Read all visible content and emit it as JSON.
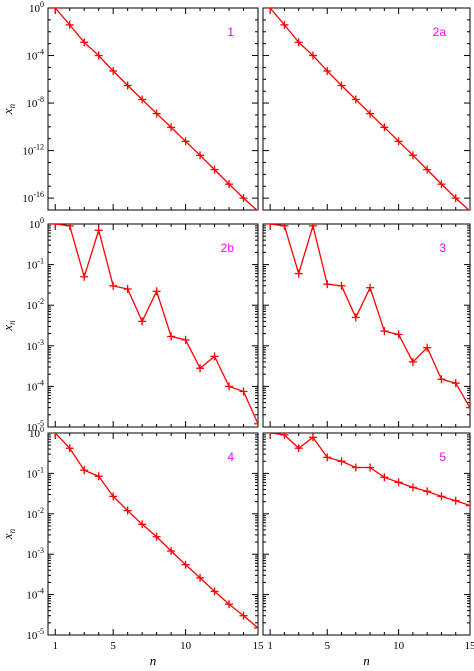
{
  "chart_data": [
    {
      "type": "line",
      "label": "1",
      "xlabel": "",
      "ylabel": "x_n",
      "yscale": "log",
      "ylim": [
        1e-17,
        1
      ],
      "xlim": [
        0,
        15
      ],
      "yticks": [
        "10^0",
        "10^-4",
        "10^-8",
        "10^-12",
        "10^-16"
      ],
      "xticks": [],
      "x": [
        1,
        2,
        3,
        4,
        5,
        6,
        7,
        8,
        9,
        10,
        11,
        12,
        13,
        14,
        15
      ],
      "series": [
        {
          "color": "#ff0000",
          "values": [
            1,
            0.038,
            0.0013,
            0.0001,
            5e-06,
            3e-07,
            2e-08,
            1.3e-09,
            9e-11,
            6e-12,
            4e-13,
            2.5e-14,
            1.5e-15,
            1e-16,
            8e-18
          ]
        }
      ]
    },
    {
      "type": "line",
      "label": "2a",
      "xlabel": "",
      "ylabel": "",
      "yscale": "log",
      "ylim": [
        1e-17,
        1
      ],
      "xlim": [
        0,
        15
      ],
      "yticks": [],
      "xticks": [],
      "x": [
        1,
        2,
        3,
        4,
        5,
        6,
        7,
        8,
        9,
        10,
        11,
        12,
        13,
        14,
        15
      ],
      "series": [
        {
          "color": "#ff0000",
          "values": [
            1,
            0.038,
            0.0013,
            0.0001,
            5e-06,
            3e-07,
            2e-08,
            1.3e-09,
            9e-11,
            6e-12,
            4e-13,
            2.5e-14,
            1.5e-15,
            1e-16,
            8e-18
          ]
        }
      ]
    },
    {
      "type": "line",
      "label": "2b",
      "xlabel": "",
      "ylabel": "x_n",
      "yscale": "log",
      "ylim": [
        1e-05,
        1
      ],
      "xlim": [
        0,
        15
      ],
      "yticks": [
        "10^0",
        "10^-1",
        "10^-2",
        "10^-3",
        "10^-4",
        "10^-5"
      ],
      "xticks": [],
      "x": [
        1,
        2,
        3,
        4,
        5,
        6,
        7,
        8,
        9,
        10,
        11,
        12,
        13,
        14,
        15
      ],
      "series": [
        {
          "color": "#ff0000",
          "values": [
            1,
            0.9,
            0.05,
            0.7,
            0.03,
            0.025,
            0.004,
            0.022,
            0.0017,
            0.0014,
            0.00028,
            0.00055,
            0.0001,
            7.5e-05,
            1.2e-05
          ]
        }
      ]
    },
    {
      "type": "line",
      "label": "3",
      "xlabel": "",
      "ylabel": "",
      "yscale": "log",
      "ylim": [
        1e-05,
        1
      ],
      "xlim": [
        0,
        15
      ],
      "yticks": [],
      "xticks": [],
      "x": [
        1,
        2,
        3,
        4,
        5,
        6,
        7,
        8,
        9,
        10,
        11,
        12,
        13,
        14,
        15
      ],
      "series": [
        {
          "color": "#ff0000",
          "values": [
            1,
            0.9,
            0.06,
            0.9,
            0.033,
            0.03,
            0.005,
            0.027,
            0.0023,
            0.0019,
            0.0004,
            0.0009,
            0.00015,
            0.00012,
            3e-05
          ]
        }
      ]
    },
    {
      "type": "line",
      "label": "4",
      "xlabel": "n",
      "ylabel": "x_n",
      "yscale": "log",
      "ylim": [
        1e-05,
        1
      ],
      "xlim": [
        0,
        15
      ],
      "yticks": [
        "10^0",
        "10^-1",
        "10^-2",
        "10^-3",
        "10^-4",
        "10^-5"
      ],
      "xticks": [
        "1",
        "5",
        "10",
        "15"
      ],
      "x": [
        1,
        2,
        3,
        4,
        5,
        6,
        7,
        8,
        9,
        10,
        11,
        12,
        13,
        14,
        15
      ],
      "series": [
        {
          "color": "#ff0000",
          "values": [
            1,
            0.42,
            0.12,
            0.085,
            0.027,
            0.012,
            0.0055,
            0.0027,
            0.0012,
            0.00055,
            0.00026,
            0.00012,
            5.8e-05,
            3e-05,
            1.5e-05
          ]
        }
      ]
    },
    {
      "type": "line",
      "label": "5",
      "xlabel": "n",
      "ylabel": "",
      "yscale": "log",
      "ylim": [
        1e-05,
        1
      ],
      "xlim": [
        0,
        15
      ],
      "yticks": [],
      "xticks": [
        "1",
        "5",
        "10",
        "15"
      ],
      "x": [
        1,
        2,
        3,
        4,
        5,
        6,
        7,
        8,
        9,
        10,
        11,
        12,
        13,
        14,
        15
      ],
      "series": [
        {
          "color": "#ff0000",
          "values": [
            1,
            0.9,
            0.42,
            0.78,
            0.25,
            0.2,
            0.14,
            0.14,
            0.08,
            0.06,
            0.045,
            0.036,
            0.027,
            0.021,
            0.016
          ]
        }
      ]
    }
  ],
  "colors": {
    "line": "#ff0000",
    "panel_label": "#ff00ff",
    "axis": "#000000"
  }
}
